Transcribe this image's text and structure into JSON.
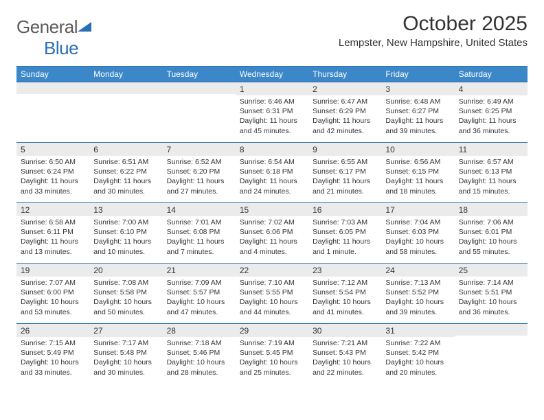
{
  "logo": {
    "word1": "General",
    "word2": "Blue"
  },
  "title": "October 2025",
  "location": "Lempster, New Hampshire, United States",
  "colors": {
    "header_bg": "#3c87c7",
    "header_border": "#2a6fb5",
    "daynum_bg": "#ebebeb",
    "text": "#333333",
    "logo_gray": "#5a5a5a",
    "logo_blue": "#2a6fb5"
  },
  "weekdays": [
    "Sunday",
    "Monday",
    "Tuesday",
    "Wednesday",
    "Thursday",
    "Friday",
    "Saturday"
  ],
  "weeks": [
    [
      null,
      null,
      null,
      {
        "n": "1",
        "sr": "Sunrise: 6:46 AM",
        "ss": "Sunset: 6:31 PM",
        "d1": "Daylight: 11 hours",
        "d2": "and 45 minutes."
      },
      {
        "n": "2",
        "sr": "Sunrise: 6:47 AM",
        "ss": "Sunset: 6:29 PM",
        "d1": "Daylight: 11 hours",
        "d2": "and 42 minutes."
      },
      {
        "n": "3",
        "sr": "Sunrise: 6:48 AM",
        "ss": "Sunset: 6:27 PM",
        "d1": "Daylight: 11 hours",
        "d2": "and 39 minutes."
      },
      {
        "n": "4",
        "sr": "Sunrise: 6:49 AM",
        "ss": "Sunset: 6:25 PM",
        "d1": "Daylight: 11 hours",
        "d2": "and 36 minutes."
      }
    ],
    [
      {
        "n": "5",
        "sr": "Sunrise: 6:50 AM",
        "ss": "Sunset: 6:24 PM",
        "d1": "Daylight: 11 hours",
        "d2": "and 33 minutes."
      },
      {
        "n": "6",
        "sr": "Sunrise: 6:51 AM",
        "ss": "Sunset: 6:22 PM",
        "d1": "Daylight: 11 hours",
        "d2": "and 30 minutes."
      },
      {
        "n": "7",
        "sr": "Sunrise: 6:52 AM",
        "ss": "Sunset: 6:20 PM",
        "d1": "Daylight: 11 hours",
        "d2": "and 27 minutes."
      },
      {
        "n": "8",
        "sr": "Sunrise: 6:54 AM",
        "ss": "Sunset: 6:18 PM",
        "d1": "Daylight: 11 hours",
        "d2": "and 24 minutes."
      },
      {
        "n": "9",
        "sr": "Sunrise: 6:55 AM",
        "ss": "Sunset: 6:17 PM",
        "d1": "Daylight: 11 hours",
        "d2": "and 21 minutes."
      },
      {
        "n": "10",
        "sr": "Sunrise: 6:56 AM",
        "ss": "Sunset: 6:15 PM",
        "d1": "Daylight: 11 hours",
        "d2": "and 18 minutes."
      },
      {
        "n": "11",
        "sr": "Sunrise: 6:57 AM",
        "ss": "Sunset: 6:13 PM",
        "d1": "Daylight: 11 hours",
        "d2": "and 15 minutes."
      }
    ],
    [
      {
        "n": "12",
        "sr": "Sunrise: 6:58 AM",
        "ss": "Sunset: 6:11 PM",
        "d1": "Daylight: 11 hours",
        "d2": "and 13 minutes."
      },
      {
        "n": "13",
        "sr": "Sunrise: 7:00 AM",
        "ss": "Sunset: 6:10 PM",
        "d1": "Daylight: 11 hours",
        "d2": "and 10 minutes."
      },
      {
        "n": "14",
        "sr": "Sunrise: 7:01 AM",
        "ss": "Sunset: 6:08 PM",
        "d1": "Daylight: 11 hours",
        "d2": "and 7 minutes."
      },
      {
        "n": "15",
        "sr": "Sunrise: 7:02 AM",
        "ss": "Sunset: 6:06 PM",
        "d1": "Daylight: 11 hours",
        "d2": "and 4 minutes."
      },
      {
        "n": "16",
        "sr": "Sunrise: 7:03 AM",
        "ss": "Sunset: 6:05 PM",
        "d1": "Daylight: 11 hours",
        "d2": "and 1 minute."
      },
      {
        "n": "17",
        "sr": "Sunrise: 7:04 AM",
        "ss": "Sunset: 6:03 PM",
        "d1": "Daylight: 10 hours",
        "d2": "and 58 minutes."
      },
      {
        "n": "18",
        "sr": "Sunrise: 7:06 AM",
        "ss": "Sunset: 6:01 PM",
        "d1": "Daylight: 10 hours",
        "d2": "and 55 minutes."
      }
    ],
    [
      {
        "n": "19",
        "sr": "Sunrise: 7:07 AM",
        "ss": "Sunset: 6:00 PM",
        "d1": "Daylight: 10 hours",
        "d2": "and 53 minutes."
      },
      {
        "n": "20",
        "sr": "Sunrise: 7:08 AM",
        "ss": "Sunset: 5:58 PM",
        "d1": "Daylight: 10 hours",
        "d2": "and 50 minutes."
      },
      {
        "n": "21",
        "sr": "Sunrise: 7:09 AM",
        "ss": "Sunset: 5:57 PM",
        "d1": "Daylight: 10 hours",
        "d2": "and 47 minutes."
      },
      {
        "n": "22",
        "sr": "Sunrise: 7:10 AM",
        "ss": "Sunset: 5:55 PM",
        "d1": "Daylight: 10 hours",
        "d2": "and 44 minutes."
      },
      {
        "n": "23",
        "sr": "Sunrise: 7:12 AM",
        "ss": "Sunset: 5:54 PM",
        "d1": "Daylight: 10 hours",
        "d2": "and 41 minutes."
      },
      {
        "n": "24",
        "sr": "Sunrise: 7:13 AM",
        "ss": "Sunset: 5:52 PM",
        "d1": "Daylight: 10 hours",
        "d2": "and 39 minutes."
      },
      {
        "n": "25",
        "sr": "Sunrise: 7:14 AM",
        "ss": "Sunset: 5:51 PM",
        "d1": "Daylight: 10 hours",
        "d2": "and 36 minutes."
      }
    ],
    [
      {
        "n": "26",
        "sr": "Sunrise: 7:15 AM",
        "ss": "Sunset: 5:49 PM",
        "d1": "Daylight: 10 hours",
        "d2": "and 33 minutes."
      },
      {
        "n": "27",
        "sr": "Sunrise: 7:17 AM",
        "ss": "Sunset: 5:48 PM",
        "d1": "Daylight: 10 hours",
        "d2": "and 30 minutes."
      },
      {
        "n": "28",
        "sr": "Sunrise: 7:18 AM",
        "ss": "Sunset: 5:46 PM",
        "d1": "Daylight: 10 hours",
        "d2": "and 28 minutes."
      },
      {
        "n": "29",
        "sr": "Sunrise: 7:19 AM",
        "ss": "Sunset: 5:45 PM",
        "d1": "Daylight: 10 hours",
        "d2": "and 25 minutes."
      },
      {
        "n": "30",
        "sr": "Sunrise: 7:21 AM",
        "ss": "Sunset: 5:43 PM",
        "d1": "Daylight: 10 hours",
        "d2": "and 22 minutes."
      },
      {
        "n": "31",
        "sr": "Sunrise: 7:22 AM",
        "ss": "Sunset: 5:42 PM",
        "d1": "Daylight: 10 hours",
        "d2": "and 20 minutes."
      },
      null
    ]
  ]
}
